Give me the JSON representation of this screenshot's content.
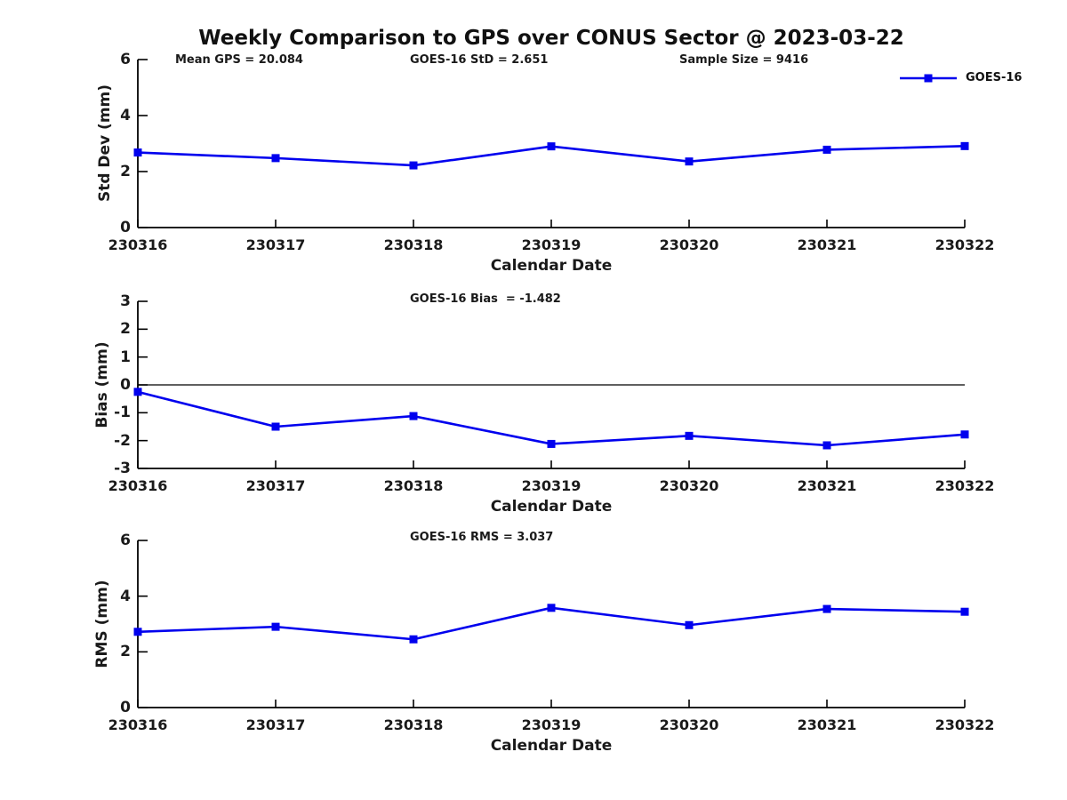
{
  "title": "Weekly Comparison to GPS over CONUS Sector @ 2023-03-22",
  "legend": {
    "label": "GOES-16"
  },
  "colors": {
    "series": "#0000ee",
    "axis": "#000000",
    "text": "#1a1a1a",
    "zero_line": "#000000"
  },
  "chart_data": [
    {
      "type": "line",
      "name": "std-dev-vs-date",
      "categories": [
        "230316",
        "230317",
        "230318",
        "230319",
        "230320",
        "230321",
        "230322"
      ],
      "series": [
        {
          "name": "GOES-16",
          "values": [
            2.68,
            2.48,
            2.22,
            2.9,
            2.36,
            2.78,
            2.91
          ]
        }
      ],
      "ylabel": "Std Dev (mm)",
      "xlabel": "Calendar Date",
      "ylim": [
        0,
        6
      ],
      "yticks": [
        0,
        2,
        4,
        6
      ],
      "grid": false,
      "legend_position": "top-right",
      "annotations": [
        {
          "text": "Mean GPS = 20.084"
        },
        {
          "text": "GOES-16 StD = 2.651"
        },
        {
          "text": "Sample Size = 9416"
        }
      ]
    },
    {
      "type": "line",
      "name": "bias-vs-date",
      "categories": [
        "230316",
        "230317",
        "230318",
        "230319",
        "230320",
        "230321",
        "230322"
      ],
      "series": [
        {
          "name": "GOES-16",
          "values": [
            -0.25,
            -1.5,
            -1.12,
            -2.12,
            -1.83,
            -2.17,
            -1.78
          ]
        }
      ],
      "ylabel": "Bias (mm)",
      "xlabel": "Calendar Date",
      "ylim": [
        -3,
        3
      ],
      "yticks": [
        3,
        2,
        1,
        0,
        -1,
        -2,
        -3
      ],
      "grid": false,
      "zero_line": true,
      "annotations": [
        {
          "text": "GOES-16 Bias  = -1.482"
        }
      ]
    },
    {
      "type": "line",
      "name": "rms-vs-date",
      "categories": [
        "230316",
        "230317",
        "230318",
        "230319",
        "230320",
        "230321",
        "230322"
      ],
      "series": [
        {
          "name": "GOES-16",
          "values": [
            2.72,
            2.9,
            2.45,
            3.58,
            2.96,
            3.54,
            3.44
          ]
        }
      ],
      "ylabel": "RMS (mm)",
      "xlabel": "Calendar Date",
      "ylim": [
        0,
        6
      ],
      "yticks": [
        0,
        2,
        4,
        6
      ],
      "grid": false,
      "annotations": [
        {
          "text": "GOES-16 RMS = 3.037"
        }
      ]
    }
  ]
}
